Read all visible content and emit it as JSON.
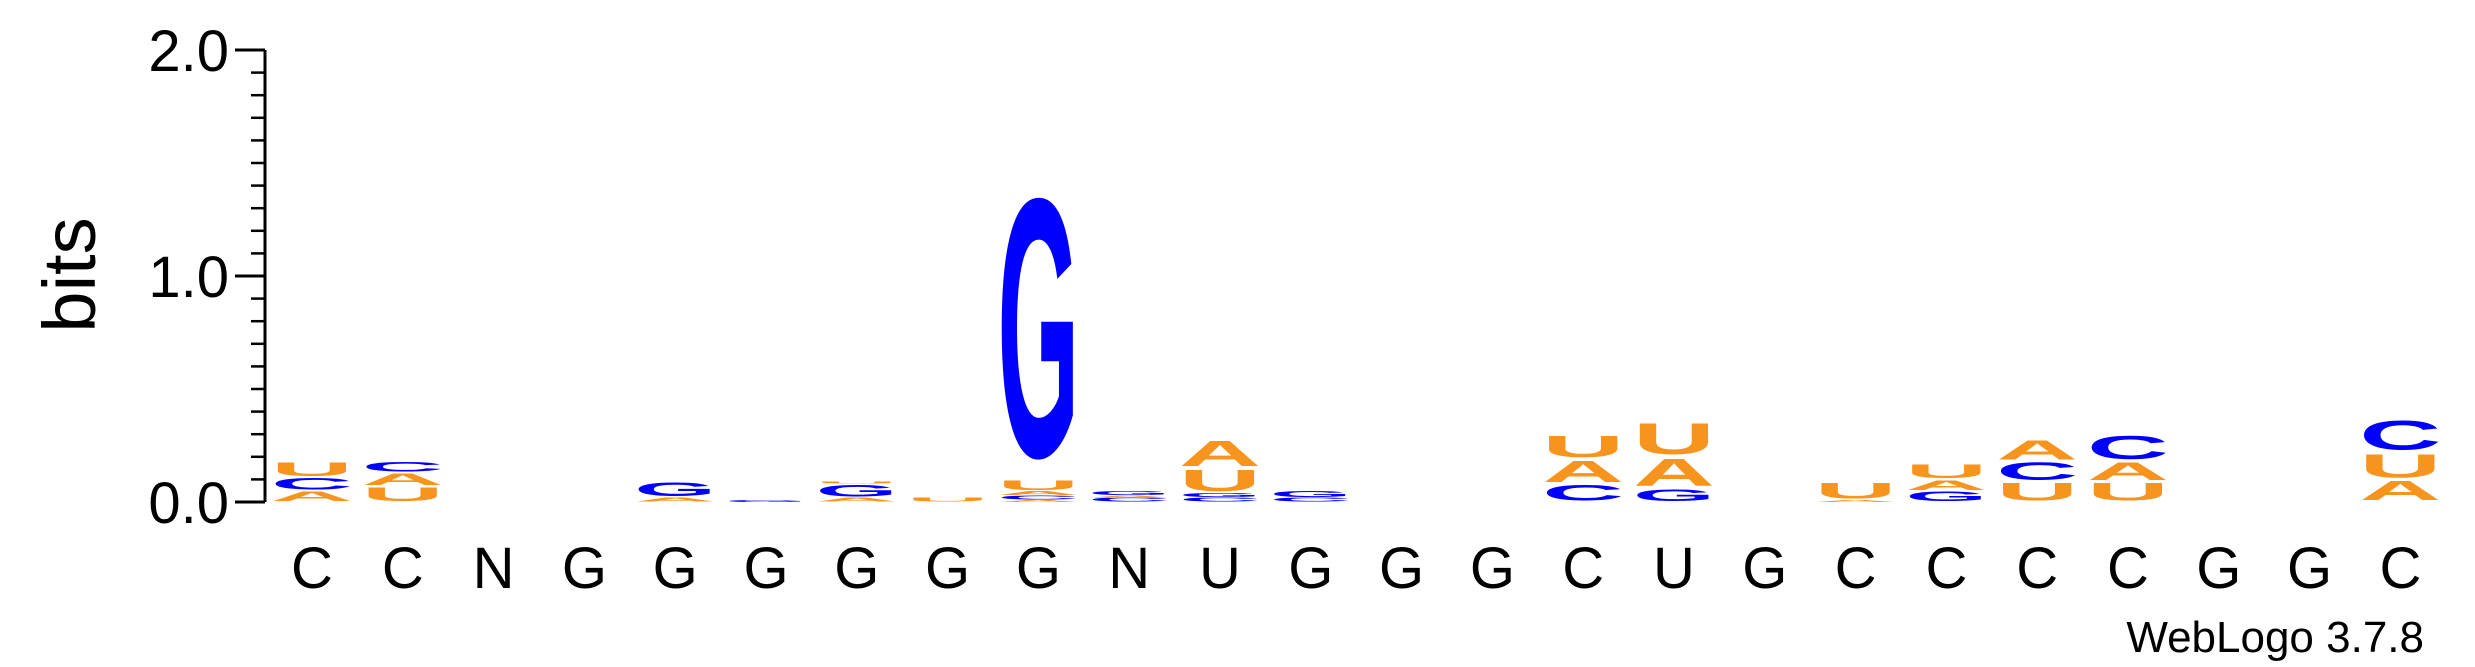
{
  "chart_data": {
    "type": "sequence-logo",
    "ylabel": "bits",
    "ylim": [
      0,
      2.0
    ],
    "yticks": [
      "0.0",
      "1.0",
      "2.0"
    ],
    "xlabels": [
      "C",
      "C",
      "N",
      "G",
      "G",
      "G",
      "G",
      "G",
      "G",
      "N",
      "U",
      "G",
      "G",
      "G",
      "C",
      "U",
      "G",
      "C",
      "C",
      "C",
      "C",
      "G",
      "G",
      "C"
    ],
    "colors": {
      "A": "#f7941d",
      "U": "#f7941d",
      "C": "#0000ff",
      "G": "#0000ff"
    },
    "columns": [
      [
        [
          "A",
          0.05
        ],
        [
          "C",
          0.06
        ],
        [
          "U",
          0.07
        ]
      ],
      [
        [
          "U",
          0.07
        ],
        [
          "A",
          0.06
        ],
        [
          "C",
          0.05
        ]
      ],
      [],
      [],
      [
        [
          "A",
          0.02
        ],
        [
          "G",
          0.07
        ]
      ],
      [
        [
          "G",
          0.01
        ]
      ],
      [
        [
          "A",
          0.02
        ],
        [
          "G",
          0.06
        ],
        [
          "U",
          0.01
        ]
      ],
      [
        [
          "U",
          0.02
        ]
      ],
      [
        [
          "A",
          0.01
        ],
        [
          "C",
          0.02
        ],
        [
          "A",
          0.02
        ],
        [
          "U",
          0.05
        ],
        [
          "G",
          1.32
        ]
      ],
      [
        [
          "C",
          0.02
        ],
        [
          "A",
          0.01
        ],
        [
          "G",
          0.02
        ]
      ],
      [
        [
          "C",
          0.02
        ],
        [
          "G",
          0.02
        ],
        [
          "U",
          0.11
        ],
        [
          "A",
          0.13
        ]
      ],
      [
        [
          "C",
          0.02
        ],
        [
          "G",
          0.03
        ]
      ],
      [],
      [],
      [
        [
          "C",
          0.08
        ],
        [
          "A",
          0.11
        ],
        [
          "U",
          0.11
        ]
      ],
      [
        [
          "G",
          0.06
        ],
        [
          "A",
          0.14
        ],
        [
          "U",
          0.16
        ]
      ],
      [],
      [
        [
          "A",
          0.01
        ],
        [
          "U",
          0.08
        ]
      ],
      [
        [
          "G",
          0.05
        ],
        [
          "A",
          0.05
        ],
        [
          "U",
          0.07
        ]
      ],
      [
        [
          "U",
          0.09
        ],
        [
          "C",
          0.09
        ],
        [
          "A",
          0.1
        ]
      ],
      [
        [
          "U",
          0.09
        ],
        [
          "A",
          0.09
        ],
        [
          "C",
          0.12
        ]
      ],
      [],
      [],
      [
        [
          "A",
          0.1
        ],
        [
          "U",
          0.12
        ],
        [
          "C",
          0.15
        ]
      ]
    ]
  },
  "footer": {
    "credit": "WebLogo 3.7.8"
  }
}
